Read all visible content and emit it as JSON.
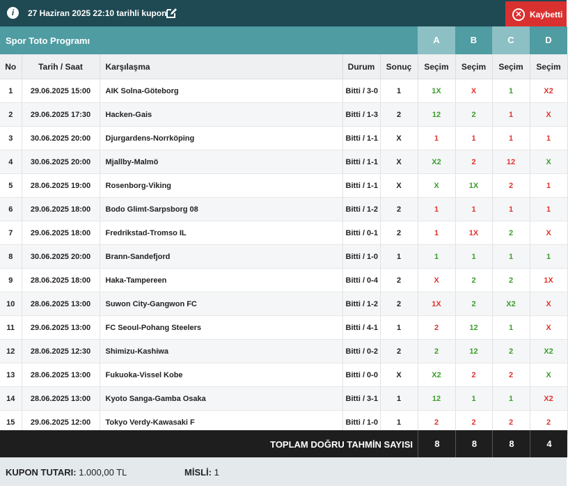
{
  "header": {
    "title": "27 Haziran 2025 22:10 tarihli kupon",
    "status": "Kaybetti"
  },
  "program": {
    "title": "Spor Toto Programı",
    "columns": [
      "A",
      "B",
      "C",
      "D"
    ]
  },
  "table": {
    "headers": [
      "No",
      "Tarih / Saat",
      "Karşılaşma",
      "Durum",
      "Sonuç",
      "Seçim",
      "Seçim",
      "Seçim",
      "Seçim"
    ],
    "rows": [
      [
        1,
        "29.06.2025 15:00",
        "AIK Solna-Göteborg",
        "Bitti / 3-0",
        "1",
        "1X",
        "X",
        "1",
        "X2"
      ],
      [
        2,
        "29.06.2025 17:30",
        "Hacken-Gais",
        "Bitti / 1-3",
        "2",
        "12",
        "2",
        "1",
        "X"
      ],
      [
        3,
        "30.06.2025 20:00",
        "Djurgardens-Norrköping",
        "Bitti / 1-1",
        "X",
        "1",
        "1",
        "1",
        "1"
      ],
      [
        4,
        "30.06.2025 20:00",
        "Mjallby-Malmö",
        "Bitti / 1-1",
        "X",
        "X2",
        "2",
        "12",
        "X"
      ],
      [
        5,
        "28.06.2025 19:00",
        "Rosenborg-Viking",
        "Bitti / 1-1",
        "X",
        "X",
        "1X",
        "2",
        "1"
      ],
      [
        6,
        "29.06.2025 18:00",
        "Bodo Glimt-Sarpsborg 08",
        "Bitti / 1-2",
        "2",
        "1",
        "1",
        "1",
        "1"
      ],
      [
        7,
        "29.06.2025 18:00",
        "Fredrikstad-Tromso IL",
        "Bitti / 0-1",
        "2",
        "1",
        "1X",
        "2",
        "X"
      ],
      [
        8,
        "30.06.2025 20:00",
        "Brann-Sandefjord",
        "Bitti / 1-0",
        "1",
        "1",
        "1",
        "1",
        "1"
      ],
      [
        9,
        "28.06.2025 18:00",
        "Haka-Tampereen",
        "Bitti / 0-4",
        "2",
        "X",
        "2",
        "2",
        "1X"
      ],
      [
        10,
        "28.06.2025 13:00",
        "Suwon City-Gangwon FC",
        "Bitti / 1-2",
        "2",
        "1X",
        "2",
        "X2",
        "X"
      ],
      [
        11,
        "29.06.2025 13:00",
        "FC Seoul-Pohang Steelers",
        "Bitti / 4-1",
        "1",
        "2",
        "12",
        "1",
        "X"
      ],
      [
        12,
        "28.06.2025 12:30",
        "Shimizu-Kashiwa",
        "Bitti / 0-2",
        "2",
        "2",
        "12",
        "2",
        "X2"
      ],
      [
        13,
        "28.06.2025 13:00",
        "Fukuoka-Vissel Kobe",
        "Bitti / 0-0",
        "X",
        "X2",
        "2",
        "2",
        "X"
      ],
      [
        14,
        "28.06.2025 13:00",
        "Kyoto Sanga-Gamba Osaka",
        "Bitti / 3-1",
        "1",
        "12",
        "1",
        "1",
        "X2"
      ],
      [
        15,
        "29.06.2025 12:00",
        "Tokyo Verdy-Kawasaki F",
        "Bitti / 1-0",
        "1",
        "2",
        "2",
        "2",
        "2"
      ]
    ]
  },
  "totals": {
    "label": "TOPLAM DOĞRU TAHMİN SAYISI",
    "values": [
      8,
      8,
      8,
      4
    ]
  },
  "footer": {
    "amount_label": "KUPON TUTARI:",
    "amount": "1.000,00 TL",
    "multiplier_label": "MİSLİ:",
    "multiplier": 1
  }
}
